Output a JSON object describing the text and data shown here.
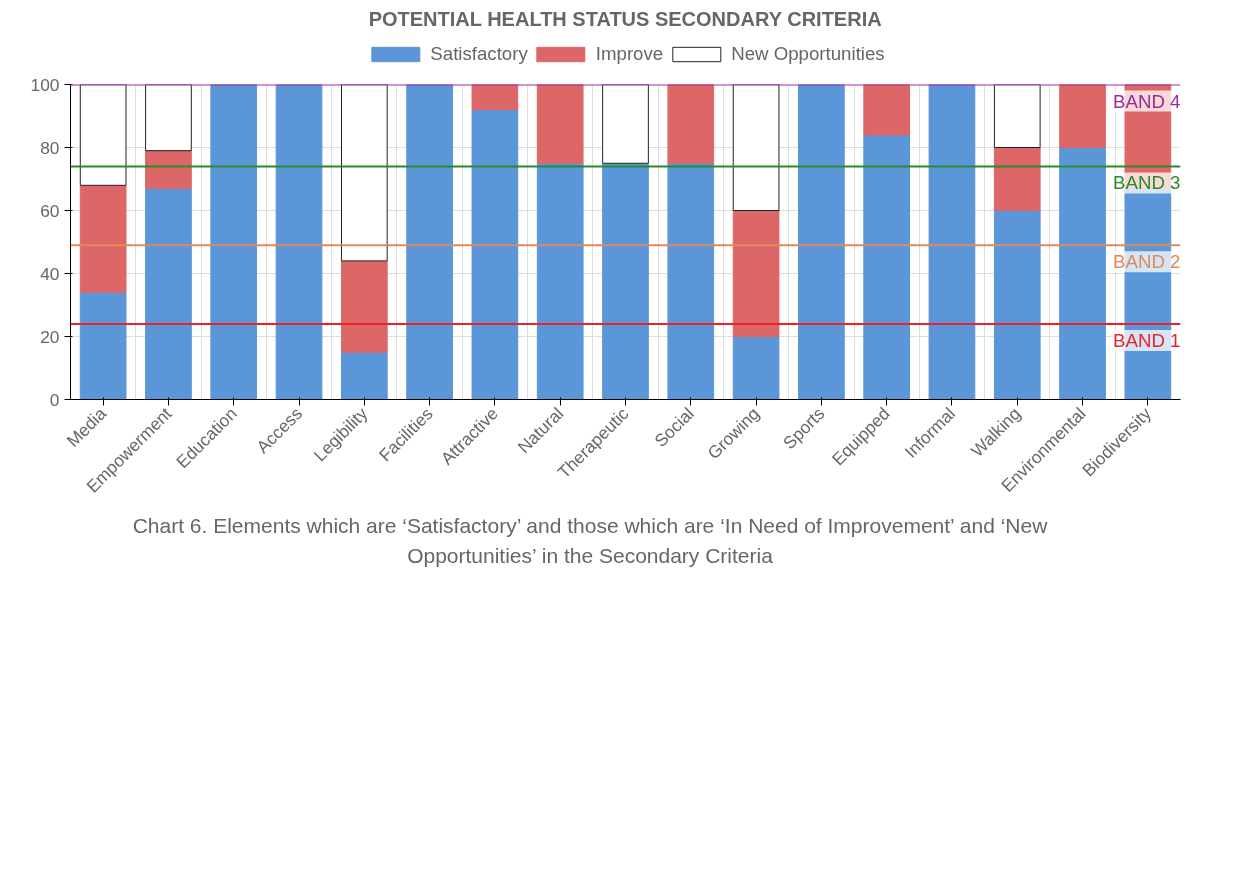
{
  "chart_data": {
    "type": "bar",
    "title": "POTENTIAL HEALTH STATUS SECONDARY CRITERIA",
    "categories": [
      "Media",
      "Empowerment",
      "Education",
      "Access",
      "Legibility",
      "Facilities",
      "Attractive",
      "Natural",
      "Therapeutic",
      "Social",
      "Growing",
      "Sports",
      "Equipped",
      "Informal",
      "Walking",
      "Environmental",
      "Biodiversity"
    ],
    "stacked": true,
    "series": [
      {
        "name": "Satisfactory",
        "color": "#5b96d8",
        "values": [
          34,
          67,
          100,
          100,
          15,
          100,
          92,
          75,
          75,
          75,
          20,
          100,
          84,
          100,
          60,
          80,
          67
        ]
      },
      {
        "name": "Improve",
        "color": "#dd6766",
        "values": [
          34,
          12,
          null,
          null,
          29,
          null,
          8,
          25,
          null,
          25,
          40,
          null,
          16,
          null,
          20,
          20,
          33
        ]
      },
      {
        "name": "New Opportunities",
        "color": "#ffffff",
        "values": [
          32,
          21,
          null,
          null,
          56,
          null,
          null,
          null,
          25,
          null,
          40,
          null,
          null,
          null,
          20,
          null,
          null
        ]
      }
    ],
    "ylim": [
      0,
      100
    ],
    "yticks": [
      0,
      20,
      40,
      60,
      80,
      100
    ],
    "grid": true,
    "legend": "top",
    "ref_lines": [
      {
        "axis": "y",
        "value": 24,
        "label": "BAND 1",
        "color": "#e8232a"
      },
      {
        "axis": "y",
        "value": 49,
        "label": "BAND 2",
        "color": "#e08a5a"
      },
      {
        "axis": "y",
        "value": 74,
        "label": "BAND 3",
        "color": "#2a8a2a"
      },
      {
        "axis": "y",
        "value": 100,
        "label": "BAND 4",
        "color": "#9b2a9b"
      }
    ],
    "annotations": [
      "Chart 6. Elements which are ‘Satisfactory’ and those which are ‘In Need of Improvement’ and ‘New Opportunities’ in the Secondary Criteria"
    ]
  }
}
